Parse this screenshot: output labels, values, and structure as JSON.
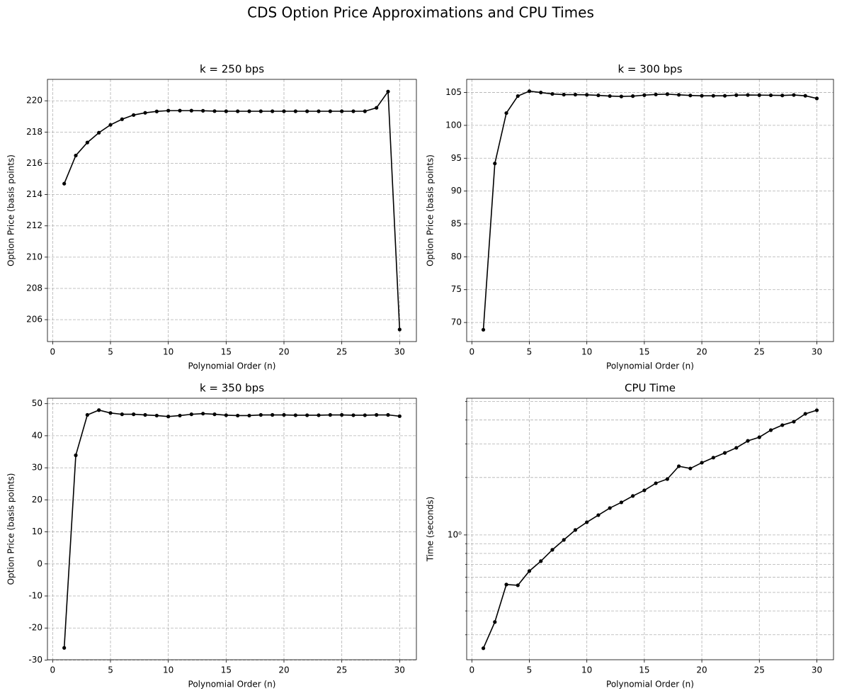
{
  "title": "CDS Option Price Approximations and CPU Times",
  "chart_data": [
    {
      "type": "line",
      "title": "k = 250 bps",
      "xlabel": "Polynomial Order (n)",
      "ylabel": "Option Price (basis points)",
      "x": [
        1,
        2,
        3,
        4,
        5,
        6,
        7,
        8,
        9,
        10,
        11,
        12,
        13,
        14,
        15,
        16,
        17,
        18,
        19,
        20,
        21,
        22,
        23,
        24,
        25,
        26,
        27,
        28,
        29,
        30
      ],
      "series": [
        {
          "color": "#000000",
          "values": [
            214.7,
            216.5,
            217.33,
            217.96,
            218.46,
            218.82,
            219.09,
            219.23,
            219.32,
            219.37,
            219.37,
            219.37,
            219.36,
            219.34,
            219.33,
            219.33,
            219.33,
            219.33,
            219.33,
            219.33,
            219.33,
            219.33,
            219.33,
            219.33,
            219.33,
            219.33,
            219.33,
            219.55,
            220.59,
            205.37
          ]
        }
      ],
      "xlim": [
        -0.45,
        31.45
      ],
      "xticks": [
        0,
        5,
        10,
        15,
        20,
        25,
        30
      ],
      "ylim": [
        204.6,
        221.37
      ],
      "yticks": [
        206,
        208,
        210,
        212,
        214,
        216,
        218,
        220
      ],
      "grid": true
    },
    {
      "type": "line",
      "title": "k = 300 bps",
      "xlabel": "Polynomial Order (n)",
      "ylabel": "Option Price (basis points)",
      "x": [
        1,
        2,
        3,
        4,
        5,
        6,
        7,
        8,
        9,
        10,
        11,
        12,
        13,
        14,
        15,
        16,
        17,
        18,
        19,
        20,
        21,
        22,
        23,
        24,
        25,
        26,
        27,
        28,
        29,
        30
      ],
      "series": [
        {
          "color": "#000000",
          "values": [
            68.9,
            94.2,
            101.87,
            104.46,
            105.2,
            105.0,
            104.78,
            104.68,
            104.68,
            104.65,
            104.57,
            104.46,
            104.4,
            104.45,
            104.6,
            104.7,
            104.75,
            104.65,
            104.55,
            104.5,
            104.5,
            104.5,
            104.6,
            104.62,
            104.6,
            104.58,
            104.55,
            104.62,
            104.5,
            104.1
          ]
        }
      ],
      "xlim": [
        -0.45,
        31.45
      ],
      "xticks": [
        0,
        5,
        10,
        15,
        20,
        25,
        30
      ],
      "ylim": [
        67.1,
        107.0
      ],
      "yticks": [
        70,
        75,
        80,
        85,
        90,
        95,
        100,
        105
      ],
      "grid": true
    },
    {
      "type": "line",
      "title": "k = 350 bps",
      "xlabel": "Polynomial Order (n)",
      "ylabel": "Option Price (basis points)",
      "x": [
        1,
        2,
        3,
        4,
        5,
        6,
        7,
        8,
        9,
        10,
        11,
        12,
        13,
        14,
        15,
        16,
        17,
        18,
        19,
        20,
        21,
        22,
        23,
        24,
        25,
        26,
        27,
        28,
        29,
        30
      ],
      "series": [
        {
          "color": "#000000",
          "values": [
            -26.2,
            33.9,
            46.5,
            48.0,
            47.1,
            46.7,
            46.7,
            46.5,
            46.3,
            46.0,
            46.3,
            46.7,
            46.9,
            46.7,
            46.4,
            46.3,
            46.3,
            46.5,
            46.5,
            46.5,
            46.4,
            46.4,
            46.4,
            46.5,
            46.5,
            46.4,
            46.4,
            46.5,
            46.5,
            46.1
          ]
        }
      ],
      "xlim": [
        -0.45,
        31.45
      ],
      "xticks": [
        0,
        5,
        10,
        15,
        20,
        25,
        30
      ],
      "ylim": [
        -29.9,
        51.7
      ],
      "yticks": [
        -30,
        -20,
        -10,
        0,
        10,
        20,
        30,
        40,
        50
      ],
      "grid": true
    },
    {
      "type": "line",
      "title": "CPU Time",
      "xlabel": "Polynomial Order (n)",
      "ylabel": "Time (seconds)",
      "x": [
        1,
        2,
        3,
        4,
        5,
        6,
        7,
        8,
        9,
        10,
        11,
        12,
        13,
        14,
        15,
        16,
        17,
        18,
        19,
        20,
        21,
        22,
        23,
        24,
        25,
        26,
        27,
        28,
        29,
        30
      ],
      "series": [
        {
          "color": "#000000",
          "values": [
            0.255,
            0.35,
            0.55,
            0.545,
            0.647,
            0.729,
            0.836,
            0.942,
            1.062,
            1.166,
            1.27,
            1.383,
            1.481,
            1.6,
            1.713,
            1.866,
            1.963,
            2.29,
            2.23,
            2.39,
            2.54,
            2.69,
            2.86,
            3.11,
            3.25,
            3.54,
            3.76,
            3.92,
            4.31,
            4.5
          ]
        }
      ],
      "xlim": [
        -0.45,
        31.45
      ],
      "xticks": [
        0,
        5,
        10,
        15,
        20,
        25,
        30
      ],
      "ylim": [
        0.222,
        5.2
      ],
      "yscale": "log",
      "yticks": [
        {
          "value": 1,
          "label": "10⁰"
        }
      ],
      "yminorticks": [
        0.3,
        0.4,
        0.5,
        0.6,
        0.7,
        0.8,
        0.9,
        2,
        3,
        4,
        5
      ],
      "grid": true
    }
  ]
}
